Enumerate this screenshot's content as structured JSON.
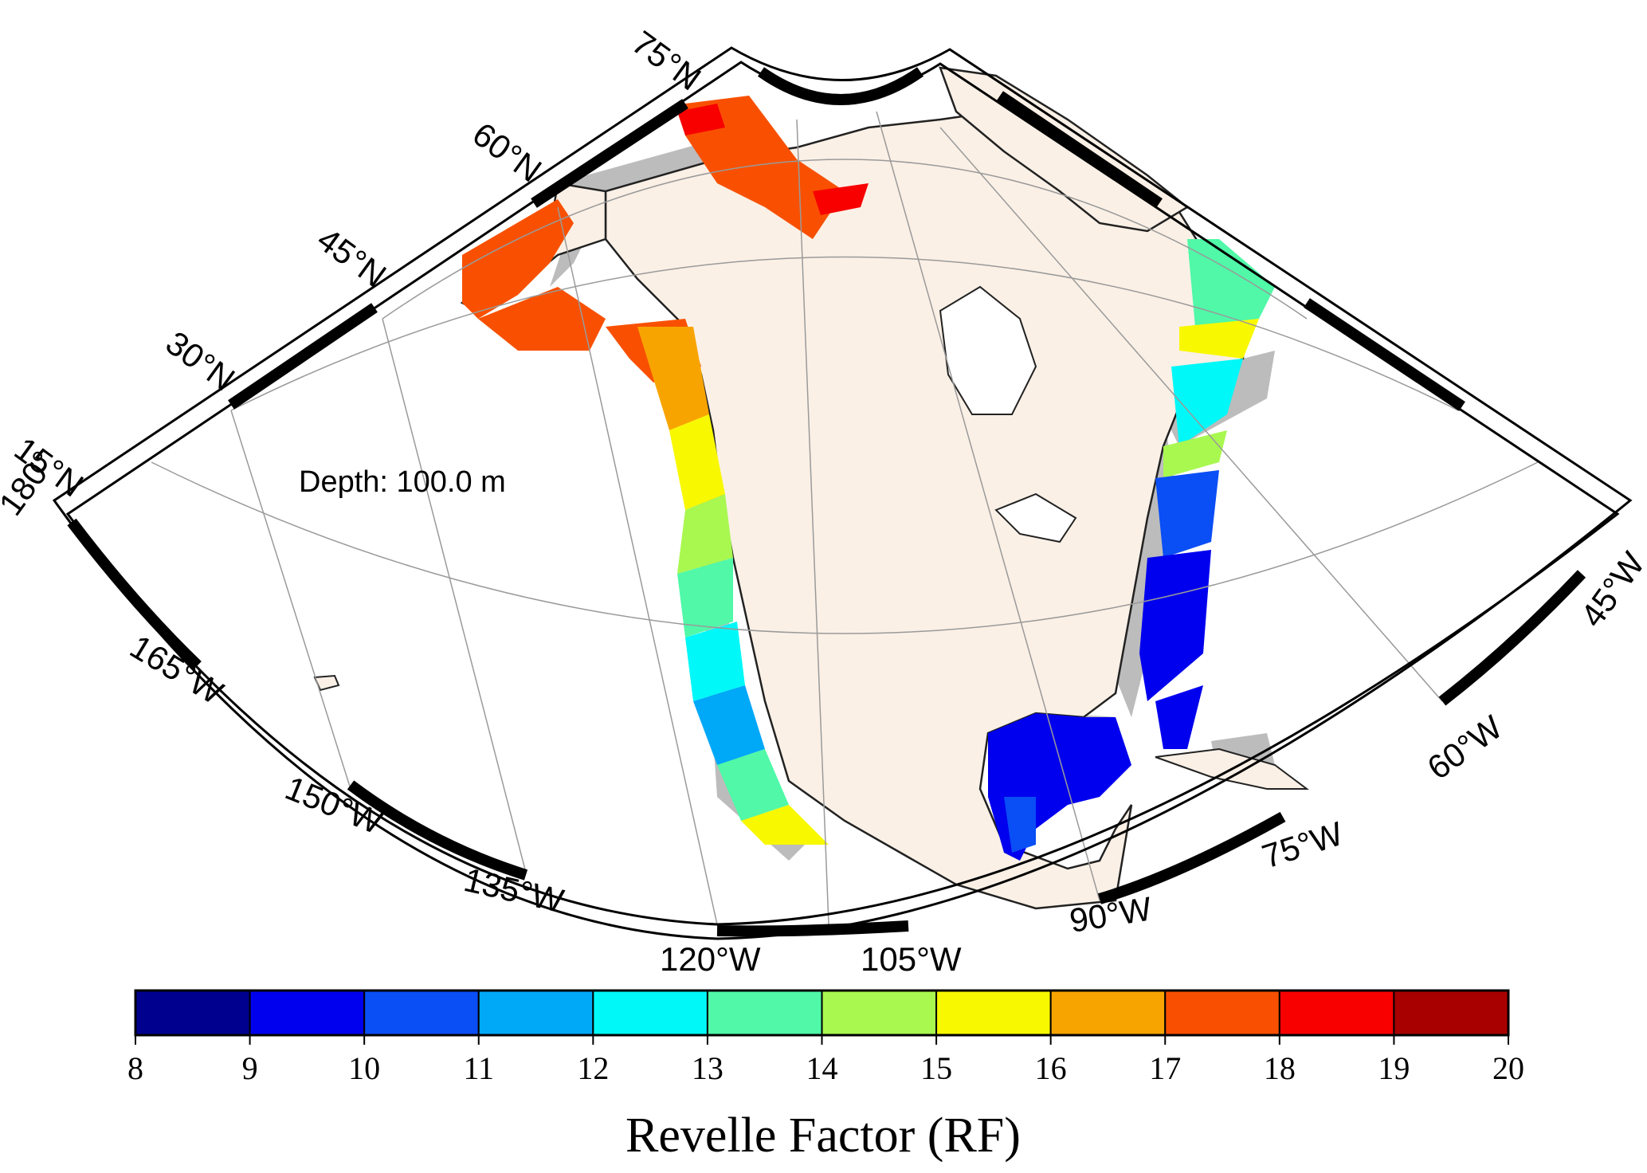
{
  "annotation": {
    "depth_label": "Depth: 100.0 m"
  },
  "map": {
    "lat_labels": [
      "75°N",
      "60°N",
      "45°N",
      "30°N",
      "15°N"
    ],
    "lon_labels": [
      "180°",
      "165°W",
      "150°W",
      "135°W",
      "120°W",
      "105°W",
      "90°W",
      "75°W",
      "60°W",
      "45°W"
    ],
    "colors": {
      "land": "#faf0e6",
      "shelf": "#bcbcbc",
      "coast": "#222222",
      "grid": "#9a9a9a",
      "frame": "#000000"
    }
  },
  "colorbar": {
    "title": "Revelle Factor (RF)",
    "ticks": [
      "8",
      "9",
      "10",
      "11",
      "12",
      "13",
      "14",
      "15",
      "16",
      "17",
      "18",
      "19",
      "20"
    ],
    "colors": [
      "#00008f",
      "#0000ee",
      "#0a4ef5",
      "#00a8f8",
      "#00f8f8",
      "#50f8a8",
      "#a8f850",
      "#f8f800",
      "#f8a400",
      "#f85000",
      "#f80000",
      "#a80000"
    ]
  }
}
